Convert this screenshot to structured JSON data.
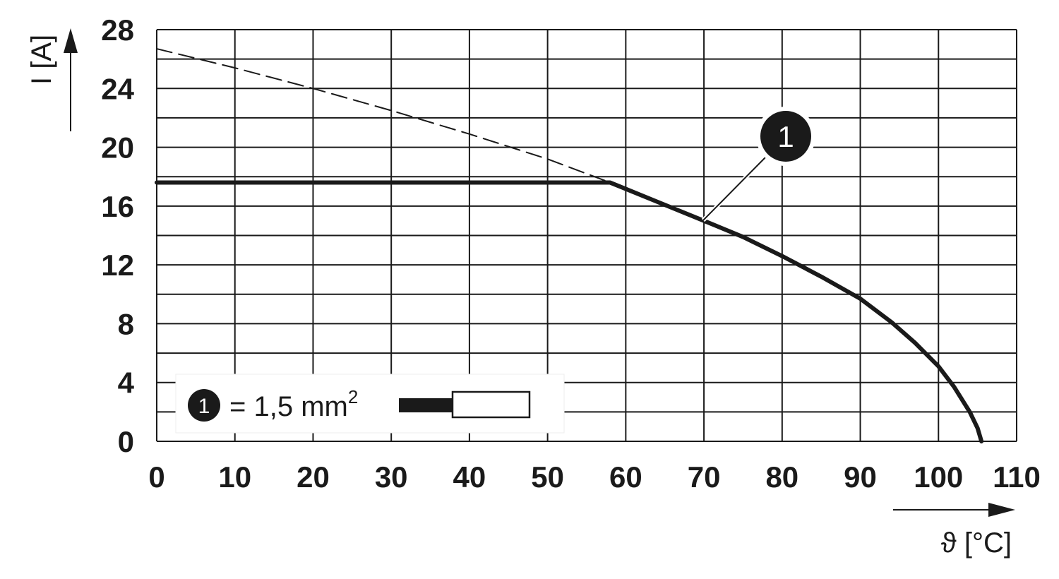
{
  "chart_data": {
    "type": "line",
    "x_label": "ϑ [°C]",
    "y_label": "I [A]",
    "xlim": [
      0,
      110
    ],
    "xticks": [
      0,
      10,
      20,
      30,
      40,
      50,
      60,
      70,
      80,
      90,
      100,
      110
    ],
    "ylim": [
      0,
      28
    ],
    "yticks": [
      0,
      4,
      8,
      12,
      16,
      20,
      24,
      28
    ],
    "y_minor_ticks": [
      2,
      6,
      10,
      14,
      18,
      22,
      26
    ],
    "grid": true,
    "series": [
      {
        "name": "1",
        "color": "#1a1a1a",
        "style": "solid",
        "x": [
          0,
          58,
          64,
          70,
          75,
          80,
          85,
          90,
          94,
          97,
          100,
          102,
          104,
          105,
          105.5
        ],
        "values": [
          17.6,
          17.6,
          16.3,
          15.0,
          13.9,
          12.6,
          11.2,
          9.7,
          8.1,
          6.7,
          5.1,
          3.7,
          2.0,
          0.9,
          0
        ]
      },
      {
        "color": "#1a1a1a",
        "style": "dashed",
        "x": [
          0,
          10,
          20,
          30,
          40,
          50,
          58
        ],
        "values": [
          26.7,
          25.4,
          24.0,
          22.5,
          20.9,
          19.2,
          17.6
        ]
      }
    ],
    "legend": {
      "label": "= 1,5 mm",
      "superscript": "2"
    }
  }
}
